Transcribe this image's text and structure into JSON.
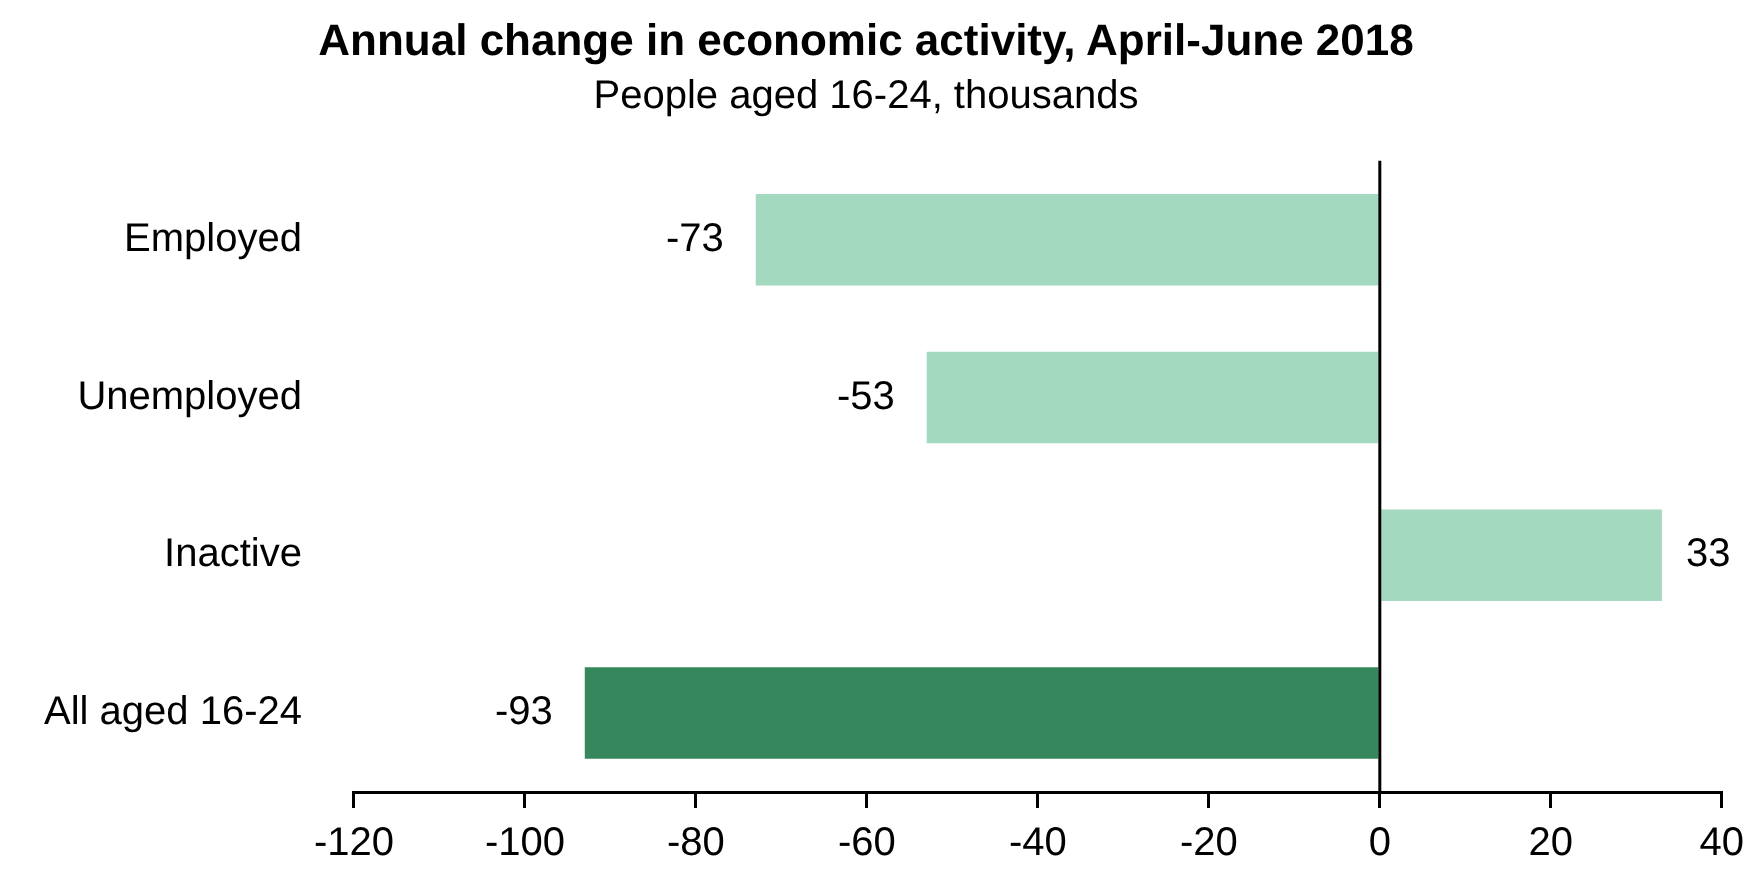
{
  "chart_data": {
    "type": "bar",
    "orientation": "horizontal",
    "title": "Annual change in economic activity, April-June 2018",
    "subtitle": "People aged 16-24, thousands",
    "categories": [
      "Employed",
      "Unemployed",
      "Inactive",
      "All aged 16-24"
    ],
    "values": [
      -73,
      -53,
      33,
      -93
    ],
    "colors": [
      "#a3d9bf",
      "#a3d9bf",
      "#a3d9bf",
      "#36875c"
    ],
    "xlim": [
      -120,
      40
    ],
    "xticks": [
      -120,
      -100,
      -80,
      -60,
      -40,
      -20,
      0,
      20,
      40
    ],
    "data_labels": true,
    "legend": false
  }
}
